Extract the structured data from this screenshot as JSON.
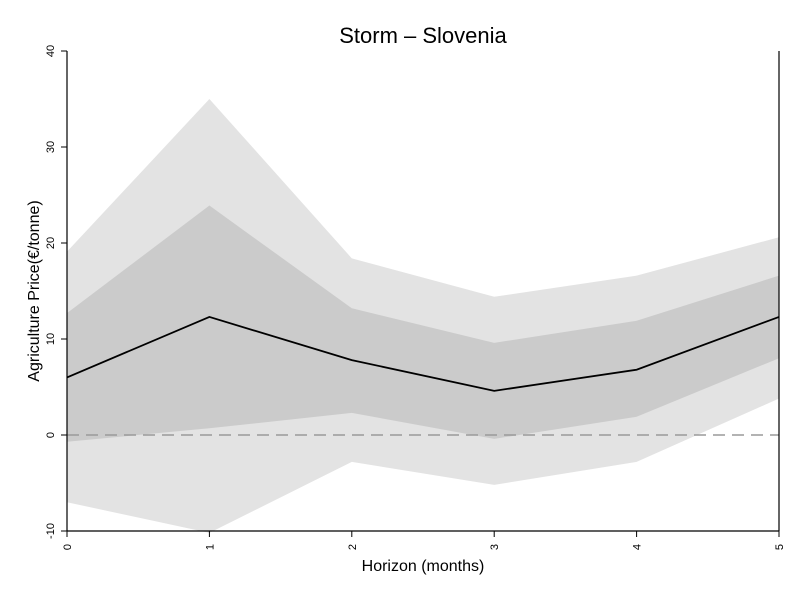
{
  "chart_data": {
    "type": "line",
    "title": "Storm – Slovenia",
    "xlabel": "Horizon (months)",
    "ylabel": "Agriculture Price(€/tonne)",
    "x": [
      0,
      1,
      2,
      3,
      4,
      5
    ],
    "x_ticks": [
      "0",
      "1",
      "2",
      "3",
      "4",
      "5"
    ],
    "y_ticks": [
      "-10",
      "0",
      "10",
      "20",
      "30",
      "40"
    ],
    "xlim": [
      0,
      5
    ],
    "ylim": [
      -10,
      40
    ],
    "grid": false,
    "legend": "none",
    "series": [
      {
        "values": [
          6.0,
          12.3,
          7.8,
          4.6,
          6.8,
          12.3
        ]
      }
    ],
    "bands": [
      {
        "lower": [
          -7.0,
          -10.2,
          -2.8,
          -5.2,
          -2.8,
          3.8
        ],
        "upper": [
          19.1,
          35.0,
          18.4,
          14.4,
          16.6,
          20.6
        ]
      },
      {
        "lower": [
          -0.7,
          0.7,
          2.3,
          -0.4,
          1.9,
          8.0
        ],
        "upper": [
          12.7,
          23.9,
          13.2,
          9.6,
          11.9,
          16.6
        ]
      }
    ],
    "zero_line": 0,
    "colors": {
      "outer_band": "#e3e3e3",
      "inner_band": "#cbcbcb",
      "line": "#000000",
      "zero_line": "#9a9a9a"
    }
  }
}
